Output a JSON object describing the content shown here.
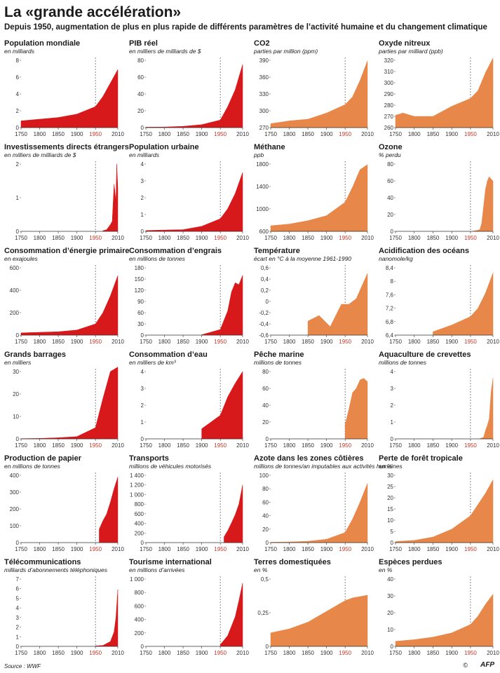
{
  "header": {
    "title": "La «grande accélération»",
    "subtitle": "Depuis 1950, augmentation de plus en plus rapide de différents paramètres de l’activité humaine et du changement climatique"
  },
  "footer": {
    "source": "Source : WWF",
    "copyright": "©",
    "credit": "AFP"
  },
  "colors": {
    "human": "#d7191c",
    "earth": "#e8874a",
    "marker_1950": "#c0392b"
  },
  "chart_data": [
    {
      "type": "area",
      "title": "Population mondiale",
      "subtitle": "en milliards",
      "color": "human",
      "ylim": [
        0,
        8
      ],
      "yticks": [
        "0",
        "2",
        "4",
        "6",
        "8"
      ],
      "x": [
        1750,
        1800,
        1850,
        1900,
        1950,
        1970,
        1990,
        2010
      ],
      "y": [
        0.8,
        1.0,
        1.2,
        1.6,
        2.5,
        3.7,
        5.3,
        6.9
      ]
    },
    {
      "type": "area",
      "title": "PIB réel",
      "subtitle": "en milliers de milliards de $",
      "color": "human",
      "ylim": [
        0,
        80
      ],
      "yticks": [
        "0",
        "20",
        "40",
        "60",
        "80"
      ],
      "x": [
        1750,
        1800,
        1850,
        1900,
        1950,
        1970,
        1990,
        2010
      ],
      "y": [
        0.5,
        0.7,
        1.5,
        3.5,
        9,
        25,
        45,
        75
      ]
    },
    {
      "type": "area",
      "title": "CO2",
      "subtitle": "parties par million (ppm)",
      "color": "earth",
      "ylim": [
        270,
        390
      ],
      "yticks": [
        "270",
        "300",
        "330",
        "360",
        "390"
      ],
      "x": [
        1750,
        1800,
        1850,
        1900,
        1950,
        1970,
        1990,
        2010
      ],
      "y": [
        277,
        282,
        285,
        296,
        311,
        325,
        354,
        389
      ]
    },
    {
      "type": "area",
      "title": "Oxyde nitreux",
      "subtitle": "parties par milliard (ppb)",
      "color": "earth",
      "ylim": [
        260,
        320
      ],
      "yticks": [
        "260",
        "270",
        "280",
        "290",
        "300",
        "310",
        "320"
      ],
      "x": [
        1750,
        1770,
        1800,
        1850,
        1900,
        1950,
        1970,
        1990,
        2010
      ],
      "y": [
        271,
        273,
        270,
        270,
        279,
        286,
        293,
        309,
        322
      ]
    },
    {
      "type": "area",
      "title": "Investissements directs étrangers",
      "subtitle": "en milliers de milliards de $",
      "color": "human",
      "ylim": [
        0,
        2
      ],
      "yticks": [
        "0",
        "1",
        "2"
      ],
      "x": [
        1970,
        1980,
        1990,
        1995,
        2000,
        2005,
        2007,
        2010
      ],
      "y": [
        0.02,
        0.05,
        0.2,
        0.3,
        1.4,
        0.9,
        2.0,
        1.3
      ]
    },
    {
      "type": "area",
      "title": "Population urbaine",
      "subtitle": "en milliards",
      "color": "human",
      "ylim": [
        0,
        4
      ],
      "yticks": [
        "0",
        "1",
        "2",
        "3",
        "4"
      ],
      "x": [
        1750,
        1800,
        1850,
        1900,
        1950,
        1970,
        1990,
        2010
      ],
      "y": [
        0.05,
        0.08,
        0.1,
        0.3,
        0.75,
        1.35,
        2.25,
        3.5
      ]
    },
    {
      "type": "area",
      "title": "Méthane",
      "subtitle": "ppb",
      "color": "earth",
      "ylim": [
        600,
        1800
      ],
      "yticks": [
        "600",
        "1000",
        "1400",
        "1800"
      ],
      "x": [
        1750,
        1800,
        1850,
        1900,
        1950,
        1970,
        1990,
        2010
      ],
      "y": [
        700,
        730,
        790,
        880,
        1120,
        1390,
        1700,
        1790
      ]
    },
    {
      "type": "area",
      "title": "Ozone",
      "subtitle": "% perdu",
      "color": "earth",
      "ylim": [
        0,
        80
      ],
      "yticks": [
        "0",
        "20",
        "40",
        "60",
        "80"
      ],
      "x": [
        1955,
        1975,
        1980,
        1985,
        1990,
        1995,
        2000,
        2005,
        2010
      ],
      "y": [
        0,
        2,
        10,
        30,
        50,
        60,
        65,
        62,
        60
      ]
    },
    {
      "type": "area",
      "title": "Consommation d’énergie primaire",
      "subtitle": "en exajoules",
      "color": "human",
      "ylim": [
        0,
        600
      ],
      "yticks": [
        "0",
        "200",
        "400",
        "600"
      ],
      "x": [
        1750,
        1800,
        1850,
        1900,
        1950,
        1970,
        1990,
        2010
      ],
      "y": [
        20,
        25,
        30,
        45,
        100,
        200,
        350,
        530
      ]
    },
    {
      "type": "area",
      "title": "Consommation d’engrais",
      "subtitle": "en millions de tonnes",
      "color": "human",
      "ylim": [
        0,
        180
      ],
      "yticks": [
        "0",
        "30",
        "60",
        "90",
        "120",
        "150",
        "180"
      ],
      "x": [
        1900,
        1950,
        1970,
        1980,
        1990,
        2000,
        2010
      ],
      "y": [
        1,
        15,
        65,
        115,
        140,
        135,
        160
      ]
    },
    {
      "type": "area",
      "title": "Température",
      "subtitle": "écart en °C à la moyenne 1961-1990",
      "color": "earth",
      "ylim": [
        -0.6,
        0.6
      ],
      "yticks": [
        "-0,6",
        "-0,4",
        "-0,2",
        "0",
        "0,2",
        "0,4",
        "0,6"
      ],
      "x": [
        1850,
        1880,
        1910,
        1940,
        1960,
        1980,
        2000,
        2010
      ],
      "y": [
        -0.35,
        -0.25,
        -0.45,
        -0.05,
        -0.05,
        0.05,
        0.35,
        0.5
      ]
    },
    {
      "type": "area",
      "title": "Acidification des océans",
      "subtitle": "nanomole/kg",
      "color": "earth",
      "ylim": [
        6.4,
        8.4
      ],
      "yticks": [
        "6,4",
        "6,8",
        "7,2",
        "7,6",
        "8",
        "8,4"
      ],
      "x": [
        1850,
        1900,
        1950,
        1970,
        1990,
        2010
      ],
      "y": [
        6.5,
        6.7,
        6.95,
        7.2,
        7.65,
        8.25
      ]
    },
    {
      "type": "area",
      "title": "Grands barrages",
      "subtitle": "en milliers",
      "color": "human",
      "ylim": [
        0,
        30
      ],
      "yticks": [
        "0",
        "10",
        "20",
        "30"
      ],
      "x": [
        1750,
        1800,
        1850,
        1900,
        1950,
        1970,
        1990,
        2010
      ],
      "y": [
        0.1,
        0.2,
        0.5,
        1,
        5,
        18,
        30,
        32
      ]
    },
    {
      "type": "area",
      "title": "Consommation d’eau",
      "subtitle": "en milliers de km³",
      "color": "human",
      "ylim": [
        0,
        4
      ],
      "yticks": [
        "0",
        "1",
        "2",
        "3",
        "4"
      ],
      "x": [
        1900,
        1950,
        1970,
        1990,
        2010
      ],
      "y": [
        0.6,
        1.4,
        2.5,
        3.3,
        4.0
      ]
    },
    {
      "type": "area",
      "title": "Pêche marine",
      "subtitle": "millions de tonnes",
      "color": "earth",
      "ylim": [
        0,
        80
      ],
      "yticks": [
        "0",
        "20",
        "40",
        "60",
        "80"
      ],
      "x": [
        1950,
        1960,
        1970,
        1980,
        1990,
        2000,
        2010
      ],
      "y": [
        17,
        35,
        55,
        60,
        70,
        72,
        68
      ]
    },
    {
      "type": "area",
      "title": "Aquaculture de crevettes",
      "subtitle": "millions de tonnes",
      "color": "earth",
      "ylim": [
        0,
        4
      ],
      "yticks": [
        "0",
        "1",
        "2",
        "3",
        "4"
      ],
      "x": [
        1975,
        1985,
        1990,
        1995,
        2000,
        2005,
        2010
      ],
      "y": [
        0.01,
        0.1,
        0.5,
        0.8,
        1.2,
        2.8,
        3.6
      ]
    },
    {
      "type": "area",
      "title": "Production de papier",
      "subtitle": "en millions de tonnes",
      "color": "human",
      "ylim": [
        0,
        400
      ],
      "yticks": [
        "0",
        "100",
        "200",
        "300",
        "400"
      ],
      "x": [
        1960,
        1970,
        1980,
        1990,
        2000,
        2010
      ],
      "y": [
        80,
        130,
        170,
        240,
        320,
        390
      ]
    },
    {
      "type": "area",
      "title": "Transports",
      "subtitle": "millions de véhicules motorisés",
      "color": "human",
      "ylim": [
        0,
        1400
      ],
      "yticks": [
        "0",
        "200",
        "400",
        "600",
        "800",
        "1 000",
        "1 200",
        "1 400"
      ],
      "x": [
        1960,
        1970,
        1980,
        1990,
        2000,
        2010
      ],
      "y": [
        120,
        250,
        410,
        580,
        800,
        1200
      ]
    },
    {
      "type": "area",
      "title": "Azote dans les zones côtières",
      "subtitle": "millions de tonnes/an imputables aux activités humaines",
      "color": "earth",
      "ylim": [
        0,
        100
      ],
      "yticks": [
        "0",
        "20",
        "40",
        "60",
        "80",
        "100"
      ],
      "x": [
        1750,
        1800,
        1850,
        1900,
        1950,
        1970,
        1990,
        2010
      ],
      "y": [
        0.5,
        1,
        2,
        5,
        15,
        35,
        60,
        88
      ]
    },
    {
      "type": "area",
      "title": "Perte de forêt tropicale",
      "subtitle": "en %",
      "color": "earth",
      "ylim": [
        0,
        30
      ],
      "yticks": [
        "0",
        "5",
        "10",
        "15",
        "20",
        "25",
        "30"
      ],
      "x": [
        1750,
        1800,
        1850,
        1900,
        1950,
        1970,
        1990,
        2010
      ],
      "y": [
        0.5,
        1,
        2.5,
        6,
        12,
        17,
        22,
        28
      ]
    },
    {
      "type": "area",
      "title": "Télécommunications",
      "subtitle": "milliards d’abonnements téléphoniques",
      "color": "human",
      "ylim": [
        0,
        7
      ],
      "yticks": [
        "0",
        "1",
        "2",
        "3",
        "4",
        "5",
        "6",
        "7"
      ],
      "x": [
        1950,
        1970,
        1990,
        2000,
        2005,
        2010
      ],
      "y": [
        0.05,
        0.1,
        0.5,
        1.5,
        3.0,
        5.9
      ]
    },
    {
      "type": "area",
      "title": "Tourisme international",
      "subtitle": "en millions d’arrivées",
      "color": "human",
      "ylim": [
        0,
        1000
      ],
      "yticks": [
        "0",
        "200",
        "400",
        "600",
        "800",
        "1 000"
      ],
      "x": [
        1950,
        1970,
        1990,
        2000,
        2010
      ],
      "y": [
        25,
        160,
        440,
        680,
        940
      ]
    },
    {
      "type": "area",
      "title": "Terres domestiquées",
      "subtitle": "en %",
      "color": "earth",
      "ylim": [
        0,
        0.5
      ],
      "yticks": [
        "0",
        "0,25",
        "0,5"
      ],
      "x": [
        1750,
        1800,
        1850,
        1900,
        1950,
        1970,
        1990,
        2010
      ],
      "y": [
        0.1,
        0.13,
        0.18,
        0.26,
        0.34,
        0.36,
        0.37,
        0.38
      ]
    },
    {
      "type": "area",
      "title": "Espèces perdues",
      "subtitle": "en %",
      "color": "earth",
      "ylim": [
        0,
        40
      ],
      "yticks": [
        "0",
        "10",
        "20",
        "30",
        "40"
      ],
      "x": [
        1750,
        1800,
        1850,
        1900,
        1950,
        1970,
        1990,
        2010
      ],
      "y": [
        3,
        4,
        5.5,
        8,
        13,
        18,
        25,
        31
      ]
    }
  ],
  "xaxis": {
    "min": 1750,
    "max": 2010,
    "ticks": [
      "1750",
      "1800",
      "1850",
      "1900",
      "1950",
      "2010"
    ],
    "highlight": "1950"
  }
}
